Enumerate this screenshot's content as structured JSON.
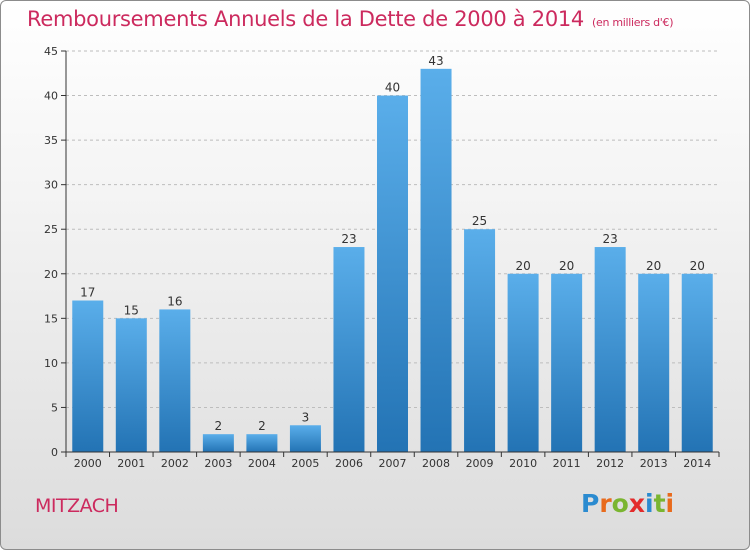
{
  "page": {
    "title": "Remboursements Annuels de la Dette de 2000 à 2014",
    "unit": "(en milliers d'€)",
    "commune": "MITZACH",
    "logo": "Proxiti"
  },
  "colors": {
    "title": "#cc2a5e",
    "bar_light": "#5aaeea",
    "bar_dark": "#2373b4",
    "axis": "#333333",
    "grid": "#bdbdbd"
  },
  "logo_letter_colors": [
    "#2b8bd0",
    "#e86a1c",
    "#7ab530",
    "#e32b2b",
    "#2b8bd0",
    "#7ab530",
    "#e86a1c"
  ],
  "chart_data": {
    "type": "bar",
    "categories": [
      "2000",
      "2001",
      "2002",
      "2003",
      "2004",
      "2005",
      "2006",
      "2007",
      "2008",
      "2009",
      "2010",
      "2011",
      "2012",
      "2013",
      "2014"
    ],
    "values": [
      17,
      15,
      16,
      2,
      2,
      3,
      23,
      40,
      43,
      25,
      20,
      20,
      23,
      20,
      20
    ],
    "ylim": [
      0,
      45
    ],
    "yticks": [
      0,
      5,
      10,
      15,
      20,
      25,
      30,
      35,
      40,
      45
    ],
    "grid": true,
    "legend": "none",
    "data_labels": true
  }
}
